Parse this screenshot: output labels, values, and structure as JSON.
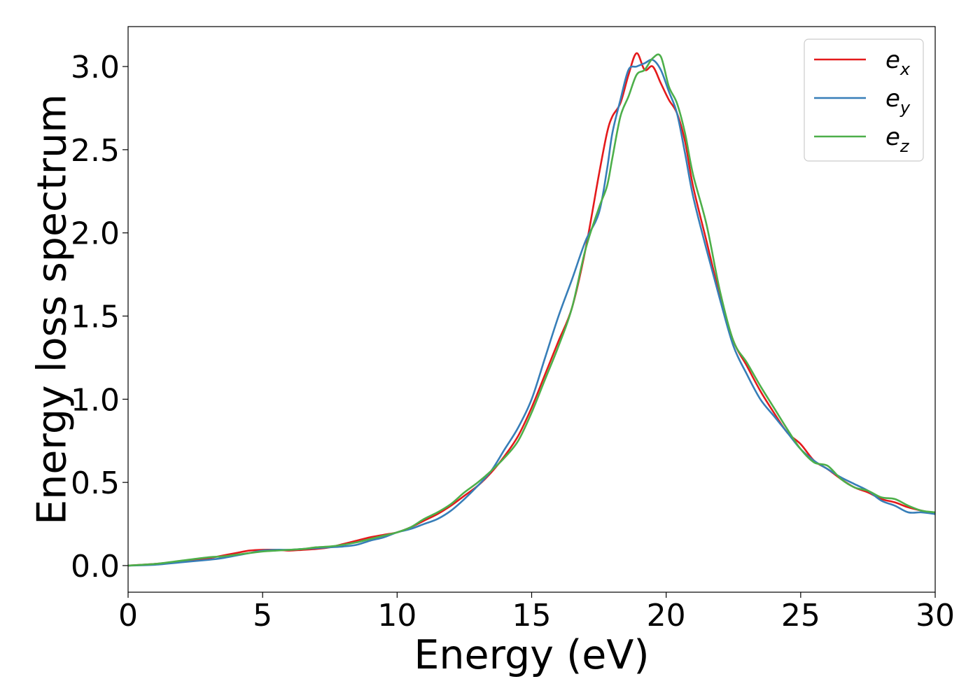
{
  "chart_data": {
    "type": "line",
    "title": "",
    "xlabel": "Energy (eV)",
    "ylabel": "Energy loss spectrum",
    "xlim": [
      0,
      30
    ],
    "ylim": [
      -0.16,
      3.24
    ],
    "xticks": [
      "0",
      "5",
      "10",
      "15",
      "20",
      "25",
      "30"
    ],
    "yticks": [
      "0.0",
      "0.5",
      "1.0",
      "1.5",
      "2.0",
      "2.5",
      "3.0"
    ],
    "grid": false,
    "legend_position": "top-right",
    "series": [
      {
        "name": "e",
        "subscript": "x",
        "color": "#e41a1c",
        "x": [
          0,
          1,
          2,
          3,
          3.5,
          4,
          4.5,
          5,
          5.5,
          6,
          6.5,
          7,
          7.5,
          8,
          8.5,
          9,
          9.5,
          10,
          10.5,
          11,
          11.5,
          12,
          12.5,
          13,
          13.5,
          14,
          14.5,
          15,
          15.5,
          16,
          16.5,
          17,
          17.5,
          17.8,
          18,
          18.3,
          18.6,
          18.9,
          19.2,
          19.5,
          19.8,
          20.1,
          20.4,
          20.7,
          21,
          21.5,
          22,
          22.5,
          23,
          23.5,
          24,
          24.5,
          25,
          25.5,
          26,
          26.5,
          27,
          27.5,
          28,
          28.5,
          29,
          29.5,
          30
        ],
        "y": [
          0.0,
          0.01,
          0.025,
          0.045,
          0.06,
          0.075,
          0.09,
          0.095,
          0.095,
          0.09,
          0.095,
          0.1,
          0.11,
          0.13,
          0.15,
          0.17,
          0.185,
          0.2,
          0.23,
          0.27,
          0.31,
          0.36,
          0.42,
          0.48,
          0.56,
          0.66,
          0.78,
          0.95,
          1.15,
          1.35,
          1.55,
          1.9,
          2.35,
          2.6,
          2.7,
          2.78,
          2.95,
          3.08,
          2.98,
          3.0,
          2.9,
          2.8,
          2.72,
          2.55,
          2.28,
          1.95,
          1.62,
          1.35,
          1.2,
          1.05,
          0.92,
          0.8,
          0.73,
          0.63,
          0.58,
          0.52,
          0.47,
          0.44,
          0.4,
          0.38,
          0.35,
          0.33,
          0.31
        ]
      },
      {
        "name": "e",
        "subscript": "y",
        "color": "#377eb8",
        "x": [
          0,
          1,
          2,
          3,
          3.5,
          4,
          4.5,
          5,
          5.5,
          6,
          6.5,
          7,
          7.5,
          8,
          8.5,
          9,
          9.5,
          10,
          10.5,
          11,
          11.5,
          12,
          12.5,
          13,
          13.5,
          14,
          14.5,
          15,
          15.5,
          16,
          16.5,
          17,
          17.5,
          17.8,
          18,
          18.3,
          18.6,
          18.9,
          19.2,
          19.5,
          19.8,
          20.1,
          20.4,
          20.7,
          21,
          21.5,
          22,
          22.5,
          23,
          23.5,
          24,
          24.5,
          25,
          25.5,
          26,
          26.5,
          27,
          27.5,
          28,
          28.5,
          29,
          29.5,
          30
        ],
        "y": [
          0.0,
          0.005,
          0.02,
          0.035,
          0.045,
          0.06,
          0.075,
          0.09,
          0.095,
          0.095,
          0.1,
          0.105,
          0.11,
          0.115,
          0.125,
          0.15,
          0.17,
          0.2,
          0.22,
          0.25,
          0.28,
          0.33,
          0.4,
          0.48,
          0.57,
          0.7,
          0.83,
          1.0,
          1.25,
          1.5,
          1.72,
          1.95,
          2.12,
          2.38,
          2.6,
          2.8,
          2.98,
          3.0,
          3.02,
          3.04,
          2.98,
          2.85,
          2.72,
          2.48,
          2.22,
          1.9,
          1.6,
          1.32,
          1.15,
          1.0,
          0.9,
          0.8,
          0.7,
          0.63,
          0.58,
          0.53,
          0.49,
          0.45,
          0.39,
          0.36,
          0.32,
          0.32,
          0.31
        ]
      },
      {
        "name": "e",
        "subscript": "z",
        "color": "#4daf4a",
        "x": [
          0,
          1,
          2,
          3,
          3.5,
          4,
          4.5,
          5,
          5.5,
          6,
          6.5,
          7,
          7.5,
          8,
          8.5,
          9,
          9.5,
          10,
          10.5,
          11,
          11.5,
          12,
          12.5,
          13,
          13.5,
          14,
          14.5,
          15,
          15.5,
          16,
          16.5,
          17,
          17.5,
          17.8,
          18,
          18.3,
          18.6,
          18.9,
          19.2,
          19.5,
          19.8,
          20.1,
          20.4,
          20.7,
          21,
          21.5,
          22,
          22.5,
          23,
          23.5,
          24,
          24.5,
          25,
          25.5,
          26,
          26.5,
          27,
          27.5,
          28,
          28.5,
          29,
          29.5,
          30
        ],
        "y": [
          0.0,
          0.01,
          0.03,
          0.05,
          0.055,
          0.065,
          0.075,
          0.085,
          0.09,
          0.095,
          0.1,
          0.11,
          0.115,
          0.125,
          0.14,
          0.16,
          0.18,
          0.2,
          0.23,
          0.28,
          0.32,
          0.37,
          0.44,
          0.5,
          0.57,
          0.65,
          0.75,
          0.92,
          1.12,
          1.32,
          1.55,
          1.9,
          2.15,
          2.28,
          2.45,
          2.7,
          2.82,
          2.95,
          2.98,
          3.05,
          3.06,
          2.88,
          2.78,
          2.6,
          2.35,
          2.05,
          1.65,
          1.35,
          1.22,
          1.08,
          0.95,
          0.82,
          0.7,
          0.62,
          0.6,
          0.52,
          0.47,
          0.45,
          0.41,
          0.4,
          0.36,
          0.33,
          0.32
        ]
      }
    ]
  }
}
